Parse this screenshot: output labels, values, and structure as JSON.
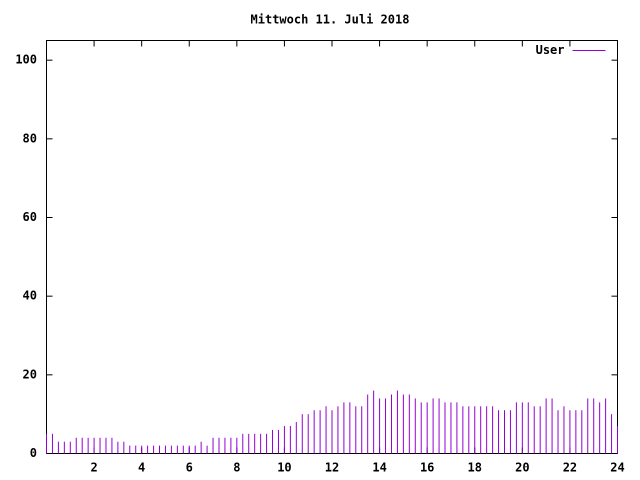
{
  "chart_data": {
    "type": "impulse",
    "title": "Mittwoch 11. Juli 2018",
    "x": [
      0,
      0.25,
      0.5,
      0.75,
      1,
      1.25,
      1.5,
      1.75,
      2,
      2.25,
      2.5,
      2.75,
      3,
      3.25,
      3.5,
      3.75,
      4,
      4.25,
      4.5,
      4.75,
      5,
      5.25,
      5.5,
      5.75,
      6,
      6.25,
      6.5,
      6.75,
      7,
      7.25,
      7.5,
      7.75,
      8,
      8.25,
      8.5,
      8.75,
      9,
      9.25,
      9.5,
      9.75,
      10,
      10.25,
      10.5,
      10.75,
      11,
      11.25,
      11.5,
      11.75,
      12,
      12.25,
      12.5,
      12.75,
      13,
      13.25,
      13.5,
      13.75,
      14,
      14.25,
      14.5,
      14.75,
      15,
      15.25,
      15.5,
      15.75,
      16,
      16.25,
      16.5,
      16.75,
      17,
      17.25,
      17.5,
      17.75,
      18,
      18.25,
      18.5,
      18.75,
      19,
      19.25,
      19.5,
      19.75,
      20,
      20.25,
      20.5,
      20.75,
      21,
      21.25,
      21.5,
      21.75,
      22,
      22.25,
      22.5,
      22.75,
      23,
      23.25,
      23.5,
      23.75,
      24
    ],
    "series": [
      {
        "name": "User",
        "color": "#9400d3",
        "values": [
          5,
          5,
          3,
          3,
          3,
          4,
          4,
          4,
          4,
          4,
          4,
          4,
          3,
          3,
          2,
          2,
          2,
          2,
          2,
          2,
          2,
          2,
          2,
          2,
          2,
          2,
          3,
          2,
          4,
          4,
          4,
          4,
          4,
          5,
          5,
          5,
          5,
          5,
          6,
          6,
          7,
          7,
          8,
          10,
          10,
          11,
          11,
          12,
          11,
          12,
          13,
          13,
          12,
          12,
          15,
          16,
          14,
          14,
          15,
          16,
          15,
          15,
          14,
          13,
          13,
          14,
          14,
          13,
          13,
          13,
          12,
          12,
          12,
          12,
          12,
          12,
          11,
          11,
          11,
          13,
          13,
          13,
          12,
          12,
          14,
          14,
          11,
          12,
          11,
          11,
          11,
          14,
          14,
          13,
          14,
          10,
          7
        ]
      }
    ],
    "xlim": [
      0,
      24
    ],
    "xticks": [
      2,
      4,
      6,
      8,
      10,
      12,
      14,
      16,
      18,
      20,
      22,
      24
    ],
    "ylim": [
      0,
      105
    ],
    "yticks": [
      0,
      20,
      40,
      60,
      80,
      100
    ],
    "legend": "top-right"
  }
}
